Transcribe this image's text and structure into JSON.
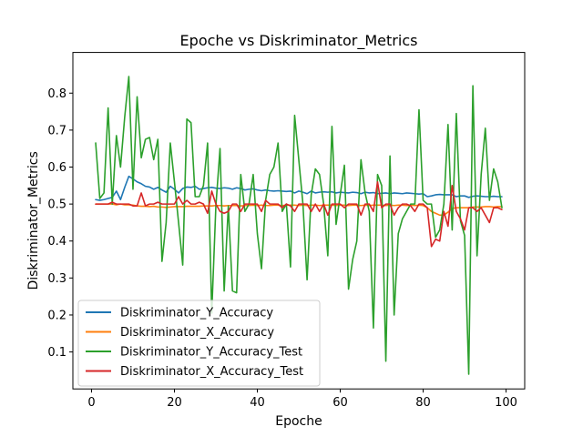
{
  "chart_data": {
    "type": "line",
    "title": "Epoche vs Diskriminator_Metrics",
    "xlabel": "Epoche",
    "ylabel": "Diskriminator_Metrics",
    "xlim": [
      -4.5,
      104.5
    ],
    "ylim": [
      0.0,
      0.91
    ],
    "xticks": [
      0,
      20,
      40,
      60,
      80,
      100
    ],
    "yticks": [
      0.1,
      0.2,
      0.3,
      0.4,
      0.5,
      0.6,
      0.7,
      0.8
    ],
    "grid": false,
    "legend_position": "lower-left",
    "x": [
      1,
      2,
      3,
      4,
      5,
      6,
      7,
      8,
      9,
      10,
      11,
      12,
      13,
      14,
      15,
      16,
      17,
      18,
      19,
      20,
      21,
      22,
      23,
      24,
      25,
      26,
      27,
      28,
      29,
      30,
      31,
      32,
      33,
      34,
      35,
      36,
      37,
      38,
      39,
      40,
      41,
      42,
      43,
      44,
      45,
      46,
      47,
      48,
      49,
      50,
      51,
      52,
      53,
      54,
      55,
      56,
      57,
      58,
      59,
      60,
      61,
      62,
      63,
      64,
      65,
      66,
      67,
      68,
      69,
      70,
      71,
      72,
      73,
      74,
      75,
      76,
      77,
      78,
      79,
      80,
      81,
      82,
      83,
      84,
      85,
      86,
      87,
      88,
      89,
      90,
      91,
      92,
      93,
      94,
      95,
      96,
      97,
      98,
      99
    ],
    "series": [
      {
        "name": "Diskriminator_Y_Accuracy",
        "color": "#1f77b4",
        "values": [
          0.512,
          0.51,
          0.512,
          0.515,
          0.518,
          0.535,
          0.512,
          0.545,
          0.575,
          0.568,
          0.56,
          0.555,
          0.548,
          0.546,
          0.54,
          0.545,
          0.538,
          0.532,
          0.548,
          0.54,
          0.53,
          0.542,
          0.546,
          0.545,
          0.548,
          0.54,
          0.542,
          0.544,
          0.545,
          0.543,
          0.542,
          0.544,
          0.543,
          0.54,
          0.544,
          0.542,
          0.538,
          0.54,
          0.541,
          0.538,
          0.536,
          0.538,
          0.536,
          0.535,
          0.536,
          0.535,
          0.534,
          0.535,
          0.53,
          0.535,
          0.532,
          0.528,
          0.535,
          0.53,
          0.532,
          0.533,
          0.532,
          0.533,
          0.53,
          0.532,
          0.531,
          0.53,
          0.532,
          0.531,
          0.528,
          0.532,
          0.53,
          0.531,
          0.528,
          0.529,
          0.53,
          0.528,
          0.53,
          0.529,
          0.528,
          0.53,
          0.529,
          0.528,
          0.527,
          0.528,
          0.52,
          0.522,
          0.525,
          0.526,
          0.525,
          0.525,
          0.525,
          0.52,
          0.522,
          0.522,
          0.518,
          0.521,
          0.522,
          0.521,
          0.52,
          0.52,
          0.521,
          0.52,
          0.52
        ]
      },
      {
        "name": "Diskriminator_X_Accuracy",
        "color": "#ff7f0e",
        "values": [
          0.5,
          0.5,
          0.5,
          0.5,
          0.5,
          0.498,
          0.5,
          0.498,
          0.498,
          0.497,
          0.495,
          0.494,
          0.494,
          0.493,
          0.494,
          0.492,
          0.492,
          0.491,
          0.492,
          0.493,
          0.493,
          0.493,
          0.494,
          0.494,
          0.494,
          0.494,
          0.495,
          0.495,
          0.495,
          0.496,
          0.496,
          0.495,
          0.496,
          0.496,
          0.496,
          0.495,
          0.496,
          0.496,
          0.497,
          0.496,
          0.497,
          0.496,
          0.496,
          0.497,
          0.497,
          0.496,
          0.497,
          0.497,
          0.497,
          0.496,
          0.497,
          0.496,
          0.497,
          0.497,
          0.496,
          0.497,
          0.497,
          0.497,
          0.496,
          0.497,
          0.497,
          0.496,
          0.497,
          0.497,
          0.496,
          0.497,
          0.496,
          0.497,
          0.497,
          0.497,
          0.496,
          0.497,
          0.496,
          0.497,
          0.497,
          0.496,
          0.497,
          0.496,
          0.497,
          0.496,
          0.49,
          0.48,
          0.475,
          0.47,
          0.47,
          0.478,
          0.488,
          0.49,
          0.49,
          0.49,
          0.49,
          0.492,
          0.492,
          0.492,
          0.493,
          0.493,
          0.492,
          0.493,
          0.493
        ]
      },
      {
        "name": "Diskriminator_Y_Accuracy_Test",
        "color": "#2ca02c",
        "values": [
          0.665,
          0.515,
          0.53,
          0.76,
          0.5,
          0.685,
          0.6,
          0.735,
          0.845,
          0.54,
          0.79,
          0.625,
          0.675,
          0.68,
          0.62,
          0.675,
          0.345,
          0.45,
          0.665,
          0.56,
          0.45,
          0.335,
          0.73,
          0.72,
          0.52,
          0.52,
          0.55,
          0.665,
          0.205,
          0.495,
          0.65,
          0.265,
          0.495,
          0.265,
          0.26,
          0.58,
          0.48,
          0.5,
          0.58,
          0.42,
          0.325,
          0.51,
          0.58,
          0.6,
          0.665,
          0.48,
          0.5,
          0.33,
          0.74,
          0.62,
          0.5,
          0.295,
          0.525,
          0.595,
          0.58,
          0.5,
          0.36,
          0.71,
          0.445,
          0.525,
          0.605,
          0.27,
          0.35,
          0.4,
          0.62,
          0.53,
          0.48,
          0.165,
          0.58,
          0.55,
          0.075,
          0.63,
          0.2,
          0.42,
          0.46,
          0.48,
          0.5,
          0.5,
          0.755,
          0.51,
          0.5,
          0.5,
          0.41,
          0.43,
          0.5,
          0.715,
          0.43,
          0.745,
          0.455,
          0.415,
          0.04,
          0.82,
          0.36,
          0.58,
          0.705,
          0.51,
          0.595,
          0.56,
          0.49
        ]
      },
      {
        "name": "Diskriminator_X_Accuracy_Test",
        "color": "#d62728",
        "values": [
          0.5,
          0.5,
          0.5,
          0.5,
          0.505,
          0.5,
          0.5,
          0.5,
          0.5,
          0.495,
          0.495,
          0.53,
          0.495,
          0.5,
          0.5,
          0.505,
          0.5,
          0.5,
          0.5,
          0.5,
          0.52,
          0.5,
          0.51,
          0.5,
          0.5,
          0.505,
          0.5,
          0.475,
          0.535,
          0.5,
          0.48,
          0.475,
          0.48,
          0.5,
          0.5,
          0.48,
          0.5,
          0.5,
          0.5,
          0.5,
          0.48,
          0.51,
          0.5,
          0.5,
          0.5,
          0.49,
          0.5,
          0.495,
          0.48,
          0.5,
          0.5,
          0.5,
          0.48,
          0.5,
          0.48,
          0.5,
          0.47,
          0.5,
          0.5,
          0.5,
          0.49,
          0.5,
          0.5,
          0.5,
          0.47,
          0.5,
          0.5,
          0.48,
          0.56,
          0.49,
          0.5,
          0.5,
          0.47,
          0.49,
          0.5,
          0.5,
          0.495,
          0.48,
          0.5,
          0.5,
          0.49,
          0.385,
          0.405,
          0.4,
          0.48,
          0.44,
          0.55,
          0.48,
          0.46,
          0.43,
          0.49,
          0.49,
          0.48,
          0.49,
          0.47,
          0.45,
          0.49,
          0.49,
          0.485
        ]
      }
    ]
  }
}
